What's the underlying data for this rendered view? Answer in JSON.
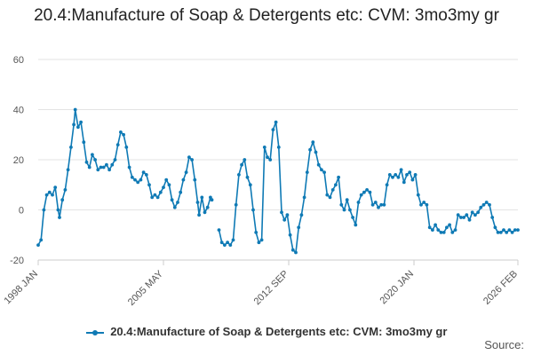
{
  "chart_data": {
    "type": "line",
    "title": "20.4:Manufacture of Soap & Detergents etc: CVM: 3mo3my gr",
    "xlabel": "",
    "ylabel": "",
    "ylim": [
      -20,
      60
    ],
    "yticks": [
      -20,
      0,
      20,
      40,
      60
    ],
    "xlim": [
      "1998-01",
      "2026-02"
    ],
    "xticks": [
      "1998 JAN",
      "2005 MAY",
      "2012 SEP",
      "2020 JAN",
      "2026 FEB"
    ],
    "grid": "horizontal",
    "legend_position": "bottom",
    "color": "#0f7ab5",
    "series": [
      {
        "name": "20.4:Manufacture of Soap & Detergents etc: CVM: 3mo3my gr",
        "points": [
          [
            "1998-01",
            -14
          ],
          [
            "1998-03",
            -12
          ],
          [
            "1998-05",
            0
          ],
          [
            "1998-07",
            6
          ],
          [
            "1998-09",
            7
          ],
          [
            "1998-11",
            6
          ],
          [
            "1999-01",
            9
          ],
          [
            "1999-03",
            0
          ],
          [
            "1999-04",
            -3
          ],
          [
            "1999-06",
            4
          ],
          [
            "1999-08",
            8
          ],
          [
            "1999-10",
            16
          ],
          [
            "1999-12",
            25
          ],
          [
            "2000-02",
            34
          ],
          [
            "2000-03",
            40
          ],
          [
            "2000-05",
            33
          ],
          [
            "2000-07",
            35
          ],
          [
            "2000-09",
            27
          ],
          [
            "2000-11",
            19
          ],
          [
            "2001-01",
            17
          ],
          [
            "2001-03",
            22
          ],
          [
            "2001-05",
            20
          ],
          [
            "2001-07",
            16
          ],
          [
            "2001-09",
            17
          ],
          [
            "2001-11",
            17
          ],
          [
            "2002-01",
            18
          ],
          [
            "2002-03",
            16
          ],
          [
            "2002-05",
            18
          ],
          [
            "2002-07",
            20
          ],
          [
            "2002-09",
            26
          ],
          [
            "2002-11",
            31
          ],
          [
            "2003-01",
            30
          ],
          [
            "2003-03",
            25
          ],
          [
            "2003-05",
            17
          ],
          [
            "2003-07",
            13
          ],
          [
            "2003-09",
            12
          ],
          [
            "2003-11",
            11
          ],
          [
            "2004-01",
            12
          ],
          [
            "2004-03",
            15
          ],
          [
            "2004-05",
            14
          ],
          [
            "2004-07",
            10
          ],
          [
            "2004-09",
            5
          ],
          [
            "2004-11",
            6
          ],
          [
            "2005-01",
            5
          ],
          [
            "2005-03",
            7
          ],
          [
            "2005-05",
            9
          ],
          [
            "2005-07",
            12
          ],
          [
            "2005-09",
            10
          ],
          [
            "2005-11",
            4
          ],
          [
            "2006-01",
            1
          ],
          [
            "2006-03",
            3
          ],
          [
            "2006-05",
            7
          ],
          [
            "2006-07",
            12
          ],
          [
            "2006-09",
            15
          ],
          [
            "2006-11",
            21
          ],
          [
            "2007-01",
            20
          ],
          [
            "2007-03",
            12
          ],
          [
            "2007-05",
            3
          ],
          [
            "2007-06",
            -2
          ],
          [
            "2007-08",
            5
          ],
          [
            "2007-10",
            -1
          ],
          [
            "2007-12",
            1
          ],
          [
            "2008-02",
            5
          ],
          [
            "2008-03",
            4
          ],
          [
            "2008-08",
            -8
          ],
          [
            "2008-10",
            -13
          ],
          [
            "2008-12",
            -14
          ],
          [
            "2009-02",
            -13
          ],
          [
            "2009-04",
            -14
          ],
          [
            "2009-06",
            -12
          ],
          [
            "2009-08",
            2
          ],
          [
            "2009-10",
            14
          ],
          [
            "2009-12",
            18
          ],
          [
            "2010-02",
            20
          ],
          [
            "2010-04",
            13
          ],
          [
            "2010-06",
            10
          ],
          [
            "2010-08",
            0
          ],
          [
            "2010-10",
            -9
          ],
          [
            "2010-12",
            -13
          ],
          [
            "2011-02",
            -12
          ],
          [
            "2011-04",
            25
          ],
          [
            "2011-06",
            21
          ],
          [
            "2011-08",
            20
          ],
          [
            "2011-10",
            32
          ],
          [
            "2011-12",
            35
          ],
          [
            "2012-02",
            25
          ],
          [
            "2012-04",
            -1
          ],
          [
            "2012-06",
            -4
          ],
          [
            "2012-08",
            -2
          ],
          [
            "2012-10",
            -10
          ],
          [
            "2012-12",
            -16
          ],
          [
            "2013-02",
            -17
          ],
          [
            "2013-04",
            -7
          ],
          [
            "2013-06",
            -2
          ],
          [
            "2013-08",
            5
          ],
          [
            "2013-10",
            15
          ],
          [
            "2013-12",
            24
          ],
          [
            "2014-02",
            27
          ],
          [
            "2014-04",
            23
          ],
          [
            "2014-06",
            18
          ],
          [
            "2014-08",
            16
          ],
          [
            "2014-10",
            15
          ],
          [
            "2014-12",
            6
          ],
          [
            "2015-02",
            5
          ],
          [
            "2015-04",
            8
          ],
          [
            "2015-06",
            10
          ],
          [
            "2015-08",
            13
          ],
          [
            "2015-10",
            2
          ],
          [
            "2015-12",
            0
          ],
          [
            "2016-02",
            4
          ],
          [
            "2016-04",
            0
          ],
          [
            "2016-06",
            -3
          ],
          [
            "2016-08",
            -6
          ],
          [
            "2016-10",
            3
          ],
          [
            "2016-12",
            6
          ],
          [
            "2017-02",
            7
          ],
          [
            "2017-04",
            8
          ],
          [
            "2017-06",
            7
          ],
          [
            "2017-08",
            2
          ],
          [
            "2017-10",
            3
          ],
          [
            "2017-12",
            1
          ],
          [
            "2018-02",
            2
          ],
          [
            "2018-04",
            2
          ],
          [
            "2018-06",
            10
          ],
          [
            "2018-08",
            14
          ],
          [
            "2018-10",
            13
          ],
          [
            "2018-12",
            14
          ],
          [
            "2019-02",
            13
          ],
          [
            "2019-04",
            16
          ],
          [
            "2019-06",
            11
          ],
          [
            "2019-08",
            14
          ],
          [
            "2019-10",
            15
          ],
          [
            "2019-12",
            12
          ],
          [
            "2020-02",
            14
          ],
          [
            "2020-04",
            6
          ],
          [
            "2020-06",
            2
          ],
          [
            "2020-08",
            3
          ],
          [
            "2020-10",
            2
          ],
          [
            "2020-12",
            -7
          ],
          [
            "2021-02",
            -8
          ],
          [
            "2021-04",
            -6
          ],
          [
            "2021-06",
            -8
          ],
          [
            "2021-08",
            -9
          ],
          [
            "2021-10",
            -9
          ],
          [
            "2021-12",
            -7
          ],
          [
            "2022-02",
            -6
          ],
          [
            "2022-04",
            -9
          ],
          [
            "2022-06",
            -8
          ],
          [
            "2022-08",
            -2
          ],
          [
            "2022-10",
            -3
          ],
          [
            "2022-12",
            -3
          ],
          [
            "2023-02",
            -2
          ],
          [
            "2023-04",
            -4
          ],
          [
            "2023-06",
            -1
          ],
          [
            "2023-08",
            -2
          ],
          [
            "2023-10",
            -1
          ],
          [
            "2023-12",
            1
          ],
          [
            "2024-02",
            2
          ],
          [
            "2024-04",
            3
          ],
          [
            "2024-06",
            2
          ],
          [
            "2024-08",
            -3
          ],
          [
            "2024-10",
            -7
          ],
          [
            "2024-12",
            -9
          ],
          [
            "2025-02",
            -9
          ],
          [
            "2025-04",
            -8
          ],
          [
            "2025-06",
            -9
          ],
          [
            "2025-08",
            -8
          ],
          [
            "2025-10",
            -9
          ],
          [
            "2025-12",
            -8
          ],
          [
            "2026-02",
            -8
          ]
        ]
      }
    ]
  },
  "footer": {
    "source_label": "Source:"
  }
}
